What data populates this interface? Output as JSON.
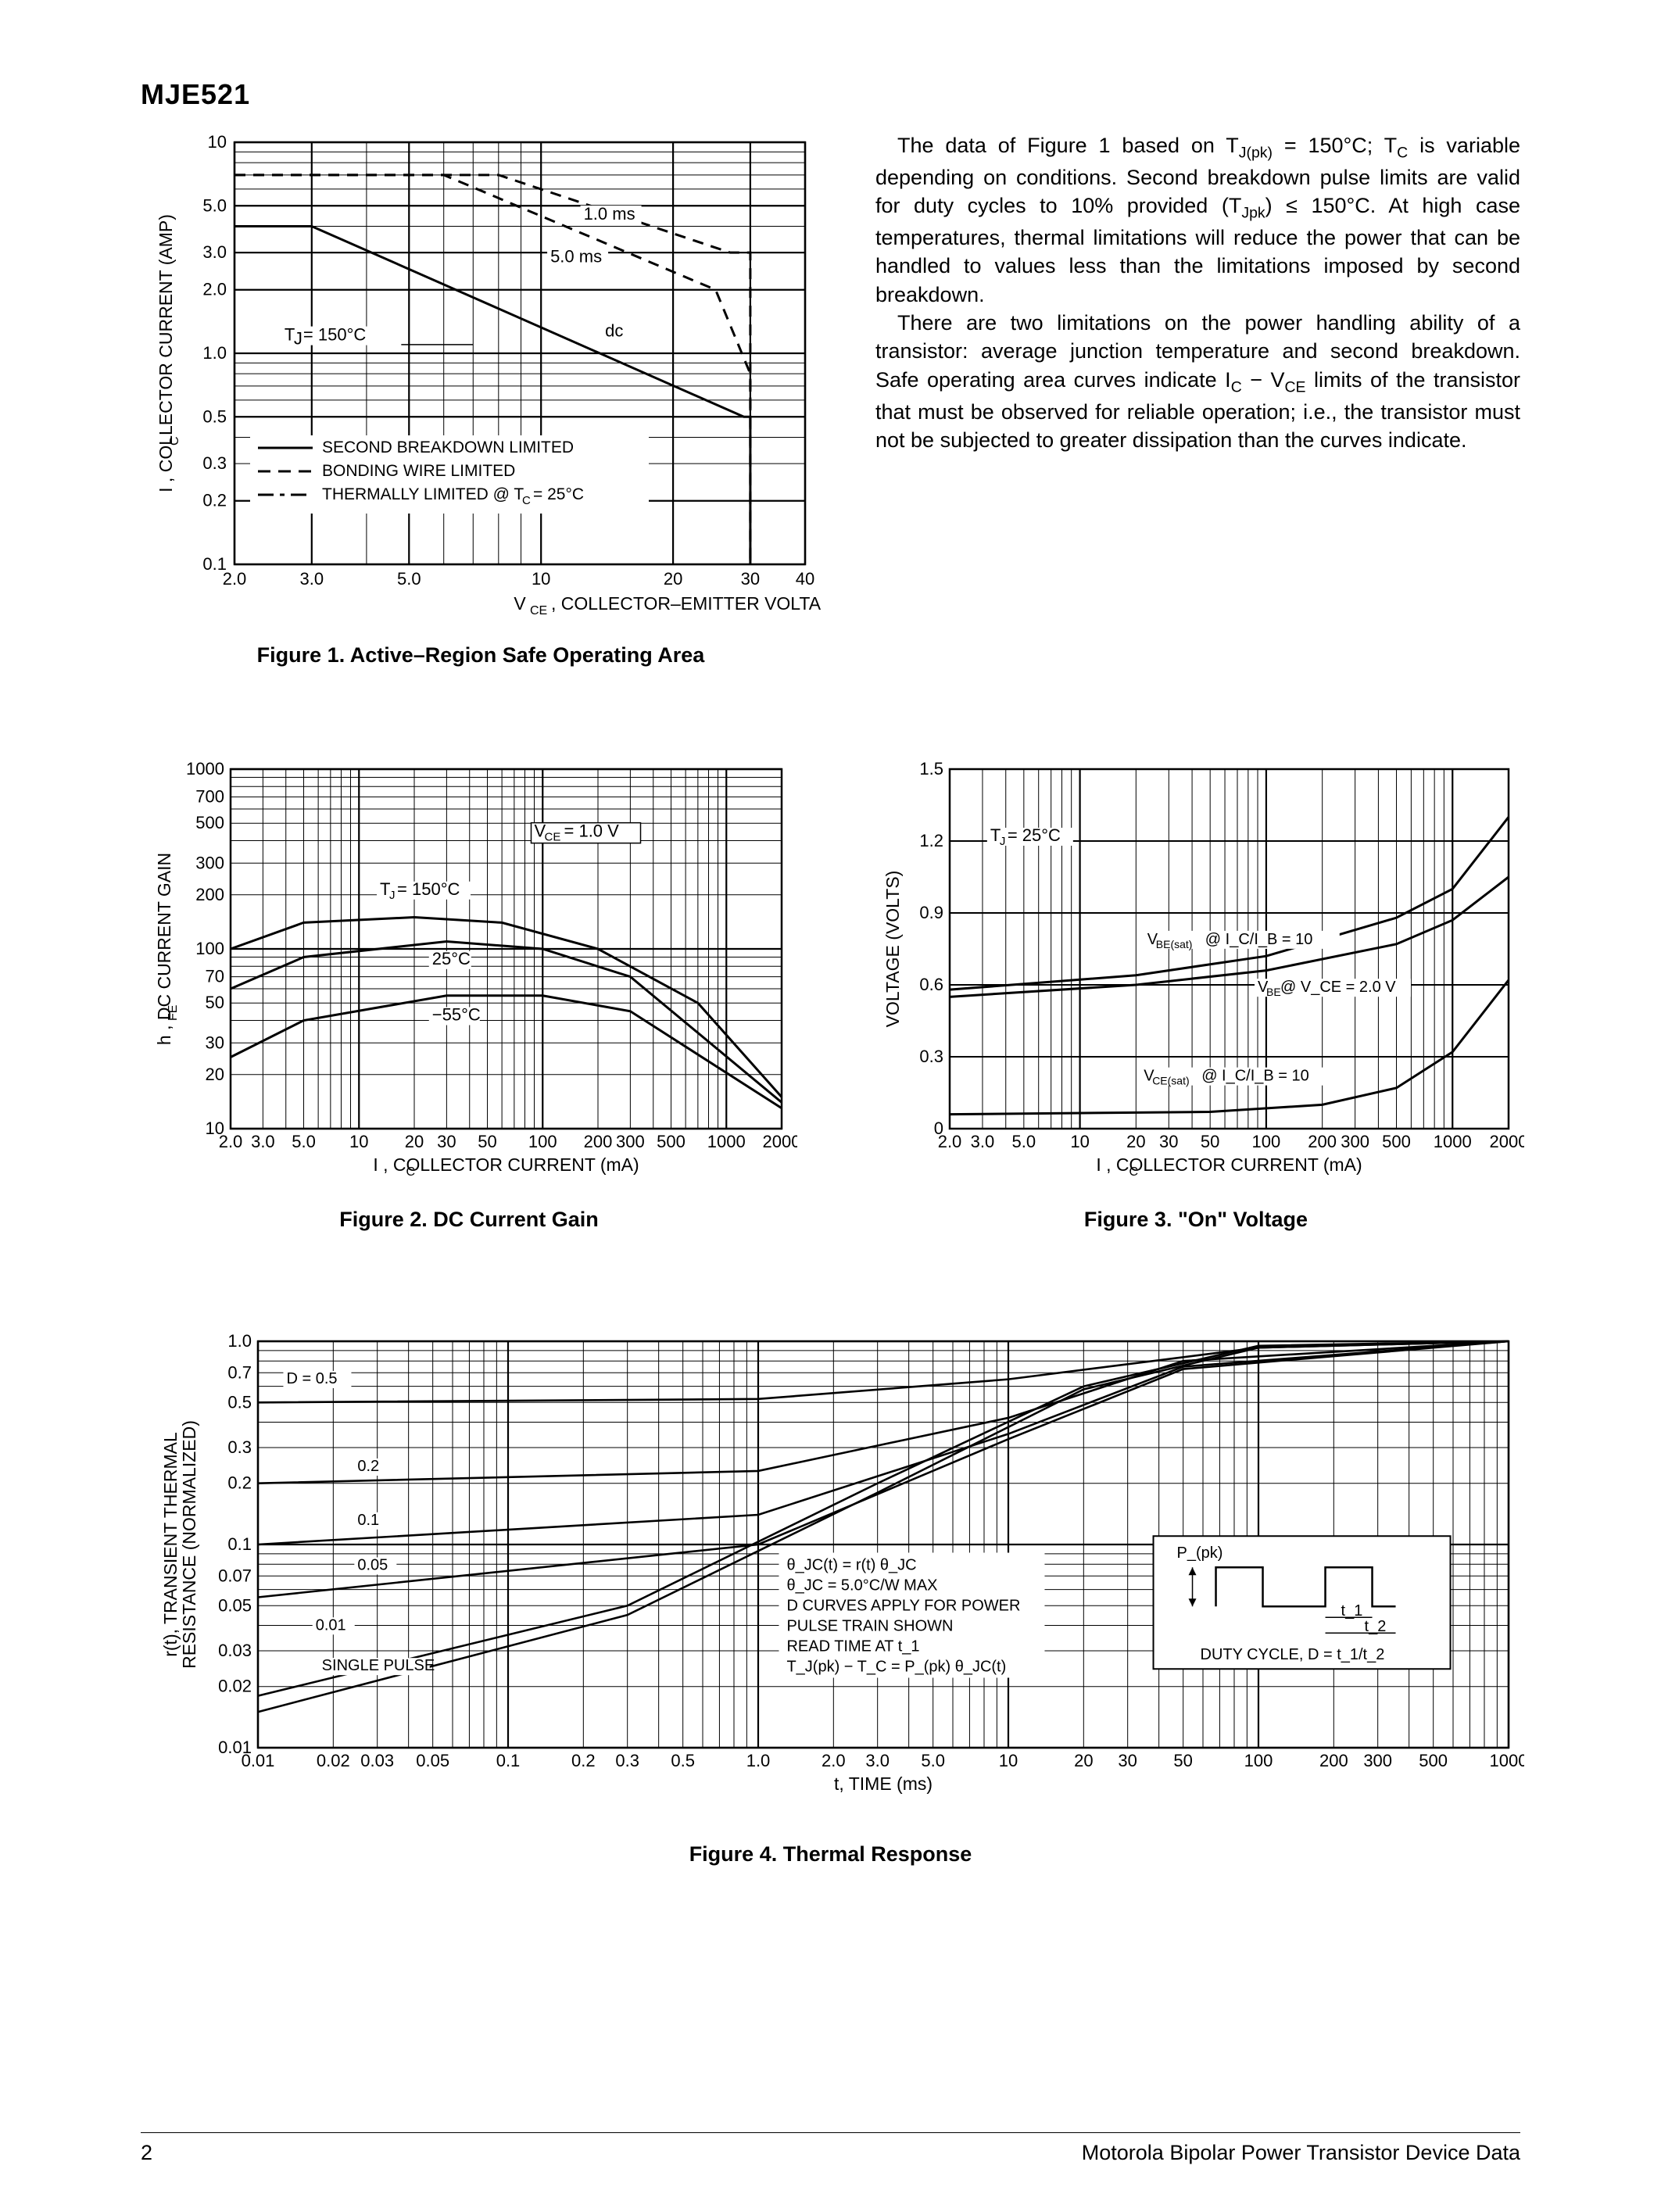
{
  "header": {
    "part_number": "MJE521"
  },
  "paragraphs": {
    "p1": "The data of Figure 1 based on T_J(pk) = 150°C; T_C is variable depending on conditions. Second breakdown pulse limits are valid for duty cycles to 10% provided (T_Jpk) ≤ 150°C. At high case temperatures, thermal limitations will reduce the power that can be handled to values less than the limitations imposed by second breakdown.",
    "p2": "There are two limitations on the power handling ability of a transistor: average junction temperature and second breakdown. Safe operating area curves indicate I_C − V_CE limits of the transistor that must be observed for reliable operation; i.e., the transistor must not be subjected to greater dissipation than the curves indicate."
  },
  "fig1": {
    "caption": "Figure 1. Active–Region Safe Operating Area",
    "ylabel": "I_C, COLLECTOR CURRENT (AMP)",
    "xlabel": "V_CE, COLLECTOR–EMITTER VOLTAGE (VOLTS)",
    "y_ticks": [
      "0.1",
      "0.2",
      "0.3",
      "0.5",
      "1.0",
      "2.0",
      "3.0",
      "5.0",
      "10"
    ],
    "x_ticks": [
      "2.0",
      "3.0",
      "5.0",
      "10",
      "20",
      "30",
      "40"
    ],
    "anno_tj": "T_J = 150°C",
    "anno_1ms": "1.0 ms",
    "anno_5ms": "5.0 ms",
    "anno_dc": "dc",
    "legend1": "SECOND BREAKDOWN LIMITED",
    "legend2": "BONDING WIRE LIMITED",
    "legend3": "THERMALLY LIMITED @ T_C = 25°C",
    "colors": {
      "line": "#000000",
      "bg": "#ffffff"
    },
    "curves": {
      "1ms": [
        [
          2,
          7
        ],
        [
          8,
          7
        ],
        [
          27,
          3
        ],
        [
          30,
          3
        ],
        [
          30,
          0.1
        ]
      ],
      "5ms": [
        [
          2,
          7
        ],
        [
          6,
          7
        ],
        [
          25,
          2
        ],
        [
          30,
          0.8
        ],
        [
          30,
          0.1
        ]
      ],
      "dc": [
        [
          2,
          4
        ],
        [
          3,
          4
        ],
        [
          29,
          0.5
        ],
        [
          30,
          0.5
        ],
        [
          30,
          0.1
        ]
      ]
    }
  },
  "fig2": {
    "caption": "Figure 2. DC Current Gain",
    "ylabel": "h_FE, DC CURRENT GAIN",
    "xlabel": "I_C, COLLECTOR CURRENT (mA)",
    "y_ticks": [
      "10",
      "20",
      "30",
      "50",
      "70",
      "100",
      "200",
      "300",
      "500",
      "700",
      "1000"
    ],
    "x_ticks": [
      "2.0",
      "3.0",
      "5.0",
      "10",
      "20",
      "30",
      "50",
      "100",
      "200",
      "300",
      "500",
      "1000",
      "2000"
    ],
    "anno_vce": "V_CE = 1.0 V",
    "anno_150": "T_J = 150°C",
    "anno_25": "25°C",
    "anno_m55": "−55°C",
    "curves": {
      "t150": [
        [
          2,
          100
        ],
        [
          5,
          140
        ],
        [
          20,
          150
        ],
        [
          60,
          140
        ],
        [
          200,
          100
        ],
        [
          700,
          50
        ],
        [
          2000,
          15
        ]
      ],
      "t25": [
        [
          2,
          60
        ],
        [
          5,
          90
        ],
        [
          30,
          110
        ],
        [
          100,
          100
        ],
        [
          300,
          70
        ],
        [
          2000,
          14
        ]
      ],
      "tm55": [
        [
          2,
          25
        ],
        [
          5,
          40
        ],
        [
          30,
          55
        ],
        [
          100,
          55
        ],
        [
          300,
          45
        ],
        [
          2000,
          13
        ]
      ]
    }
  },
  "fig3": {
    "caption": "Figure 3. \"On\" Voltage",
    "ylabel": "VOLTAGE (VOLTS)",
    "xlabel": "I_C, COLLECTOR CURRENT (mA)",
    "y_ticks": [
      "0",
      "0.3",
      "0.6",
      "0.9",
      "1.2",
      "1.5"
    ],
    "x_ticks": [
      "2.0",
      "3.0",
      "5.0",
      "10",
      "20",
      "30",
      "50",
      "100",
      "200",
      "300",
      "500",
      "1000",
      "2000"
    ],
    "anno_tj": "T_J = 25°C",
    "anno_vbesat": "V_BE(sat) @ I_C/I_B = 10",
    "anno_vbe": "V_BE @ V_CE = 2.0 V",
    "anno_vcesat": "V_CE(sat) @ I_C/I_B = 10",
    "curves": {
      "vbesat": [
        [
          2,
          0.58
        ],
        [
          20,
          0.64
        ],
        [
          100,
          0.72
        ],
        [
          500,
          0.88
        ],
        [
          1000,
          1.0
        ],
        [
          2000,
          1.3
        ]
      ],
      "vbe": [
        [
          2,
          0.55
        ],
        [
          20,
          0.6
        ],
        [
          100,
          0.66
        ],
        [
          500,
          0.77
        ],
        [
          1000,
          0.87
        ],
        [
          2000,
          1.05
        ]
      ],
      "vcesat": [
        [
          2,
          0.06
        ],
        [
          50,
          0.07
        ],
        [
          200,
          0.1
        ],
        [
          500,
          0.17
        ],
        [
          1000,
          0.32
        ],
        [
          2000,
          0.62
        ]
      ]
    }
  },
  "fig4": {
    "caption": "Figure 4. Thermal Response",
    "ylabel": "r(t), TRANSIENT THERMAL RESISTANCE (NORMALIZED)",
    "xlabel": "t, TIME (ms)",
    "y_ticks": [
      "0.01",
      "0.02",
      "0.03",
      "0.05",
      "0.07",
      "0.1",
      "0.2",
      "0.3",
      "0.5",
      "0.7",
      "1.0"
    ],
    "x_ticks": [
      "0.01",
      "0.02",
      "0.03",
      "0.05",
      "0.1",
      "0.2",
      "0.3",
      "0.5",
      "1.0",
      "2.0",
      "3.0",
      "5.0",
      "10",
      "20",
      "30",
      "50",
      "100",
      "200",
      "300",
      "500",
      "1000"
    ],
    "labels": {
      "d05": "D = 0.5",
      "d02": "0.2",
      "d01": "0.1",
      "d005": "0.05",
      "d001": "0.01",
      "single": "SINGLE PULSE"
    },
    "notes": [
      "θ_JC(t) = r(t) θ_JC",
      "θ_JC = 5.0°C/W MAX",
      "D CURVES APPLY FOR POWER",
      "PULSE TRAIN SHOWN",
      "READ TIME AT t_1",
      "T_J(pk) − T_C = P_(pk) θ_JC(t)"
    ],
    "inset": {
      "ppk": "P_(pk)",
      "t1": "t_1",
      "t2": "t_2",
      "duty": "DUTY CYCLE, D = t_1/t_2"
    },
    "curves": {
      "d05": [
        [
          0.01,
          0.5
        ],
        [
          1,
          0.52
        ],
        [
          10,
          0.65
        ],
        [
          100,
          0.93
        ],
        [
          1000,
          1.0
        ]
      ],
      "d02": [
        [
          0.01,
          0.2
        ],
        [
          1,
          0.23
        ],
        [
          10,
          0.42
        ],
        [
          50,
          0.8
        ],
        [
          1000,
          1.0
        ]
      ],
      "d01": [
        [
          0.01,
          0.1
        ],
        [
          1,
          0.14
        ],
        [
          10,
          0.35
        ],
        [
          50,
          0.75
        ],
        [
          1000,
          1.0
        ]
      ],
      "d005": [
        [
          0.01,
          0.055
        ],
        [
          1,
          0.1
        ],
        [
          10,
          0.33
        ],
        [
          50,
          0.73
        ],
        [
          1000,
          1.0
        ]
      ],
      "d001": [
        [
          0.01,
          0.018
        ],
        [
          0.3,
          0.05
        ],
        [
          3,
          0.2
        ],
        [
          20,
          0.6
        ],
        [
          100,
          0.95
        ],
        [
          1000,
          1.0
        ]
      ],
      "single": [
        [
          0.01,
          0.015
        ],
        [
          0.3,
          0.045
        ],
        [
          3,
          0.18
        ],
        [
          20,
          0.58
        ],
        [
          100,
          0.93
        ],
        [
          1000,
          1.0
        ]
      ]
    }
  },
  "footer": {
    "page": "2",
    "right": "Motorola Bipolar Power Transistor Device Data"
  }
}
